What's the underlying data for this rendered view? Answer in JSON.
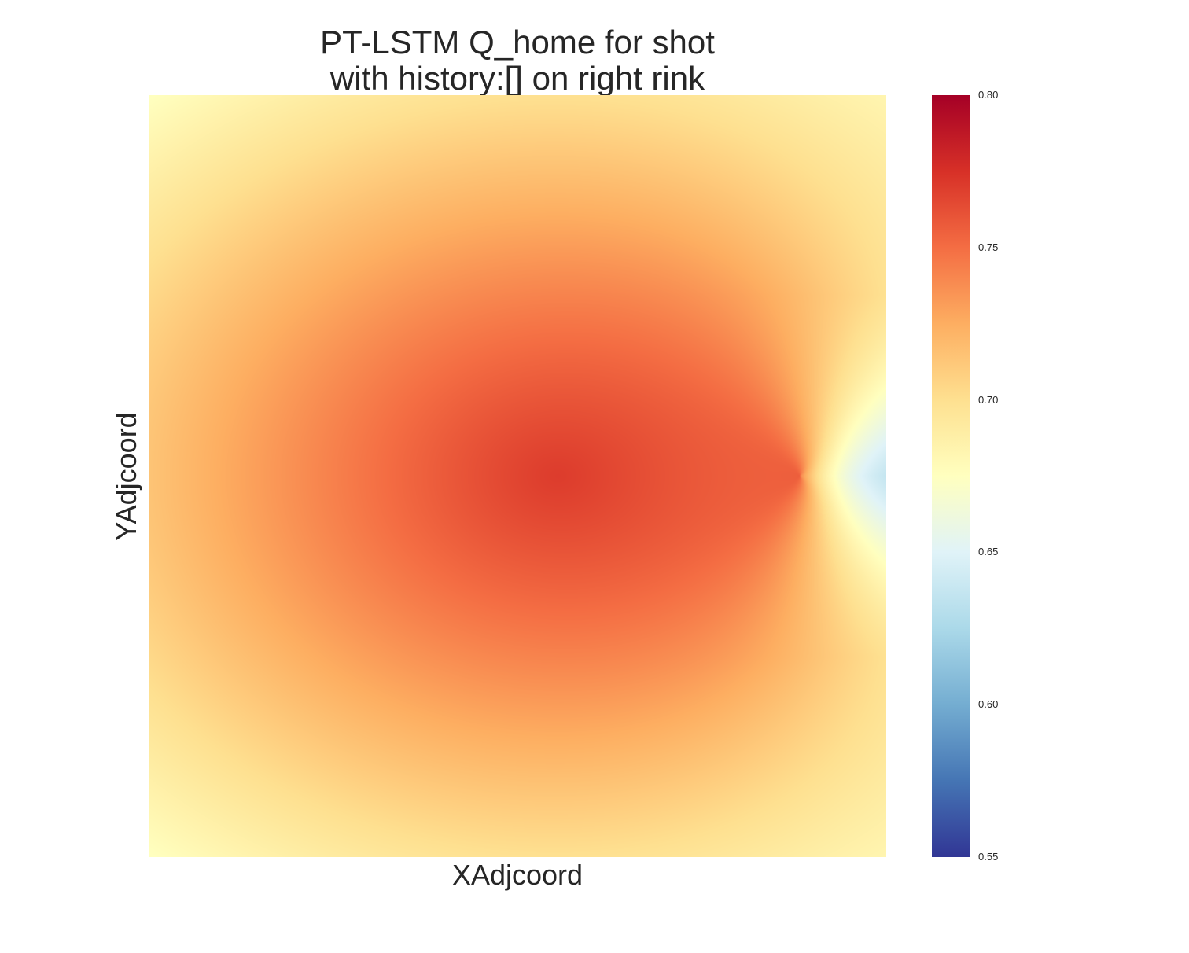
{
  "chart_data": {
    "type": "heatmap",
    "title_lines": [
      "PT-LSTM Q_home for shot",
      "with history:[] on right rink"
    ],
    "xlabel": "XAdjcoord",
    "ylabel": "YAdjcoord",
    "colormap": "RdYlBu_r",
    "colorbar": {
      "min": 0.55,
      "max": 0.8,
      "ticks": [
        "0.80",
        "0.75",
        "0.70",
        "0.65",
        "0.60",
        "0.55"
      ],
      "tick_values": [
        0.8,
        0.75,
        0.7,
        0.65,
        0.6,
        0.55
      ]
    },
    "approx_values": {
      "peak": 0.77,
      "top_left_corner": 0.66,
      "bottom_left_corner": 0.66,
      "left_edge_center": 0.7,
      "top_edge_center": 0.685,
      "right_edge_center": 0.62,
      "right_edge_top": 0.68,
      "right_edge_bottom": 0.68
    },
    "grid": false,
    "legend": "colorbar-right"
  }
}
